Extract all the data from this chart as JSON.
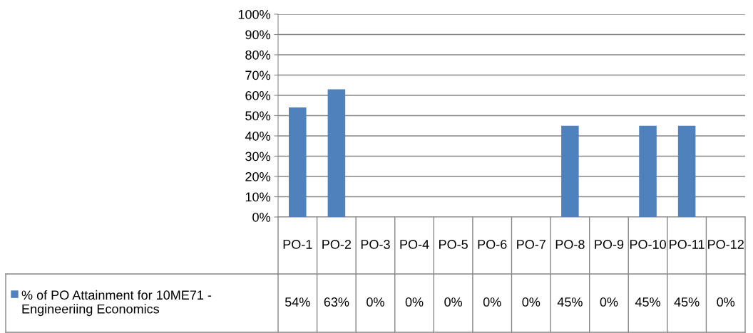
{
  "chart_data": {
    "type": "bar",
    "categories": [
      "PO-1",
      "PO-2",
      "PO-3",
      "PO-4",
      "PO-5",
      "PO-6",
      "PO-7",
      "PO-8",
      "PO-9",
      "PO-10",
      "PO-11",
      "PO-12"
    ],
    "series": [
      {
        "name": "% of PO Attainment for 10ME71 - Engineeriing Economics",
        "color": "#4f81bd",
        "values": [
          54,
          63,
          0,
          0,
          0,
          0,
          0,
          45,
          0,
          45,
          45,
          0
        ],
        "value_labels": [
          "54%",
          "63%",
          "0%",
          "0%",
          "0%",
          "0%",
          "0%",
          "45%",
          "0%",
          "45%",
          "45%",
          "0%"
        ]
      }
    ],
    "ylim": [
      0,
      100
    ],
    "yticks": [
      {
        "value": 0,
        "label": "0%"
      },
      {
        "value": 10,
        "label": "10%"
      },
      {
        "value": 20,
        "label": "20%"
      },
      {
        "value": 30,
        "label": "30%"
      },
      {
        "value": 40,
        "label": "40%"
      },
      {
        "value": 50,
        "label": "50%"
      },
      {
        "value": 60,
        "label": "60%"
      },
      {
        "value": 70,
        "label": "70%"
      },
      {
        "value": 80,
        "label": "80%"
      },
      {
        "value": 90,
        "label": "90%"
      },
      {
        "value": 100,
        "label": "100%"
      }
    ],
    "grid": "y",
    "legend": "bottom left"
  }
}
